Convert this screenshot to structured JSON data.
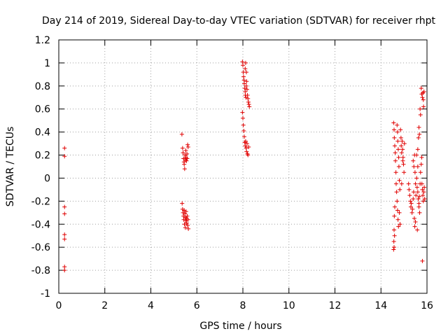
{
  "chart_data": {
    "type": "scatter",
    "title": "Day 214 of 2019, Sidereal Day-to-day VTEC variation (SDTVAR) for receiver rhpt",
    "xlabel": "GPS time / hours",
    "ylabel": "SDTVAR / TECUs",
    "xlim": [
      0,
      16
    ],
    "ylim": [
      -1,
      1.2
    ],
    "x_ticks": [
      0,
      2,
      4,
      6,
      8,
      10,
      12,
      14,
      16
    ],
    "x_tick_labels": [
      "0",
      "2",
      "4",
      "6",
      "8",
      "10",
      "12",
      "14",
      "16"
    ],
    "y_ticks": [
      -1,
      -0.8,
      -0.6,
      -0.4,
      -0.2,
      0,
      0.2,
      0.4,
      0.6,
      0.8,
      1,
      1.2
    ],
    "y_tick_labels": [
      "-1",
      "-0.8",
      "-0.6",
      "-0.4",
      "-0.2",
      "0",
      "0.2",
      "0.4",
      "0.6",
      "0.8",
      "1",
      "1.2"
    ],
    "grid": true,
    "marker": "+",
    "marker_color": "#e00000",
    "series": [
      {
        "name": "SDTVAR",
        "points": [
          [
            0.25,
            0.26
          ],
          [
            0.25,
            0.19
          ],
          [
            0.25,
            -0.25
          ],
          [
            0.25,
            -0.31
          ],
          [
            0.25,
            -0.49
          ],
          [
            0.25,
            -0.53
          ],
          [
            0.25,
            -0.77
          ],
          [
            0.25,
            -0.8
          ],
          [
            5.35,
            0.38
          ],
          [
            5.38,
            0.26
          ],
          [
            5.4,
            0.22
          ],
          [
            5.42,
            0.17
          ],
          [
            5.44,
            0.14
          ],
          [
            5.45,
            0.12
          ],
          [
            5.47,
            0.08
          ],
          [
            5.48,
            0.2
          ],
          [
            5.5,
            0.16
          ],
          [
            5.52,
            0.24
          ],
          [
            5.53,
            0.18
          ],
          [
            5.55,
            0.15
          ],
          [
            5.57,
            0.21
          ],
          [
            5.58,
            0.17
          ],
          [
            5.6,
            0.29
          ],
          [
            5.62,
            0.27
          ],
          [
            5.36,
            -0.22
          ],
          [
            5.38,
            -0.27
          ],
          [
            5.4,
            -0.3
          ],
          [
            5.42,
            -0.33
          ],
          [
            5.43,
            -0.36
          ],
          [
            5.45,
            -0.28
          ],
          [
            5.46,
            -0.4
          ],
          [
            5.48,
            -0.31
          ],
          [
            5.49,
            -0.34
          ],
          [
            5.5,
            -0.43
          ],
          [
            5.52,
            -0.37
          ],
          [
            5.53,
            -0.29
          ],
          [
            5.55,
            -0.35
          ],
          [
            5.56,
            -0.39
          ],
          [
            5.58,
            -0.33
          ],
          [
            5.6,
            -0.41
          ],
          [
            5.62,
            -0.36
          ],
          [
            5.63,
            -0.44
          ],
          [
            7.98,
            1.01
          ],
          [
            8.0,
            0.98
          ],
          [
            8.02,
            0.92
          ],
          [
            8.03,
            0.88
          ],
          [
            8.05,
            0.85
          ],
          [
            8.06,
            0.82
          ],
          [
            8.08,
            0.78
          ],
          [
            8.1,
            0.75
          ],
          [
            8.11,
            0.72
          ],
          [
            8.13,
            0.7
          ],
          [
            8.15,
            0.8
          ],
          [
            8.16,
            0.84
          ],
          [
            8.18,
            0.77
          ],
          [
            8.2,
            0.72
          ],
          [
            8.22,
            0.69
          ],
          [
            8.24,
            0.66
          ],
          [
            8.26,
            0.64
          ],
          [
            8.28,
            0.62
          ],
          [
            8.1,
            0.95
          ],
          [
            8.12,
            1.0
          ],
          [
            8.15,
            0.92
          ],
          [
            7.98,
            0.57
          ],
          [
            8.0,
            0.52
          ],
          [
            8.02,
            0.46
          ],
          [
            8.04,
            0.41
          ],
          [
            8.06,
            0.36
          ],
          [
            8.08,
            0.31
          ],
          [
            8.1,
            0.28
          ],
          [
            8.12,
            0.32
          ],
          [
            8.14,
            0.26
          ],
          [
            8.16,
            0.23
          ],
          [
            8.18,
            0.3
          ],
          [
            8.2,
            0.21
          ],
          [
            8.22,
            0.2
          ],
          [
            8.25,
            0.27
          ],
          [
            14.55,
            0.48
          ],
          [
            14.57,
            0.42
          ],
          [
            14.58,
            0.35
          ],
          [
            14.6,
            0.28
          ],
          [
            14.62,
            0.22
          ],
          [
            14.63,
            0.15
          ],
          [
            14.65,
            0.05
          ],
          [
            14.66,
            -0.05
          ],
          [
            14.68,
            -0.12
          ],
          [
            14.6,
            -0.25
          ],
          [
            14.58,
            -0.33
          ],
          [
            14.57,
            -0.45
          ],
          [
            14.56,
            -0.55
          ],
          [
            14.55,
            -0.62
          ],
          [
            14.57,
            -0.6
          ],
          [
            14.59,
            -0.5
          ],
          [
            14.7,
            0.46
          ],
          [
            14.72,
            0.4
          ],
          [
            14.73,
            0.32
          ],
          [
            14.75,
            0.25
          ],
          [
            14.77,
            0.18
          ],
          [
            14.78,
            0.1
          ],
          [
            14.8,
            -0.02
          ],
          [
            14.82,
            -0.1
          ],
          [
            14.7,
            -0.2
          ],
          [
            14.72,
            -0.28
          ],
          [
            14.74,
            -0.36
          ],
          [
            14.76,
            -0.42
          ],
          [
            14.85,
            0.42
          ],
          [
            14.87,
            0.35
          ],
          [
            14.88,
            0.28
          ],
          [
            14.9,
            0.22
          ],
          [
            14.92,
            0.32
          ],
          [
            14.94,
            0.25
          ],
          [
            14.96,
            0.18
          ],
          [
            14.98,
            0.12
          ],
          [
            15.0,
            0.05
          ],
          [
            14.9,
            -0.05
          ],
          [
            14.95,
            0.15
          ],
          [
            15.02,
            0.3
          ],
          [
            14.8,
            -0.3
          ],
          [
            14.83,
            -0.4
          ],
          [
            15.2,
            -0.05
          ],
          [
            15.22,
            -0.1
          ],
          [
            15.25,
            -0.15
          ],
          [
            15.28,
            -0.2
          ],
          [
            15.3,
            -0.25
          ],
          [
            15.32,
            -0.22
          ],
          [
            15.35,
            -0.3
          ],
          [
            15.37,
            -0.27
          ],
          [
            15.4,
            -0.18
          ],
          [
            15.42,
            -0.12
          ],
          [
            15.45,
            -0.35
          ],
          [
            15.47,
            -0.42
          ],
          [
            15.4,
            0.15
          ],
          [
            15.43,
            0.1
          ],
          [
            15.46,
            0.2
          ],
          [
            15.48,
            0.05
          ],
          [
            15.5,
            -0.05
          ],
          [
            15.52,
            -0.15
          ],
          [
            15.55,
            0.0
          ],
          [
            15.57,
            -0.08
          ],
          [
            15.6,
            -0.12
          ],
          [
            15.62,
            -0.18
          ],
          [
            15.65,
            -0.22
          ],
          [
            15.67,
            -0.16
          ],
          [
            15.7,
            -0.05
          ],
          [
            15.72,
            0.05
          ],
          [
            15.75,
            0.12
          ],
          [
            15.77,
            0.18
          ],
          [
            15.6,
            0.25
          ],
          [
            15.63,
            0.35
          ],
          [
            15.65,
            0.44
          ],
          [
            15.67,
            0.38
          ],
          [
            15.7,
            0.6
          ],
          [
            15.72,
            0.55
          ],
          [
            15.6,
            0.1
          ],
          [
            15.55,
            0.2
          ],
          [
            15.75,
            0.78
          ],
          [
            15.77,
            0.73
          ],
          [
            15.8,
            0.7
          ],
          [
            15.82,
            0.74
          ],
          [
            15.84,
            0.68
          ],
          [
            15.85,
            0.62
          ],
          [
            15.87,
            0.75
          ],
          [
            15.78,
            -0.05
          ],
          [
            15.8,
            -0.1
          ],
          [
            15.82,
            -0.15
          ],
          [
            15.84,
            -0.2
          ],
          [
            15.86,
            -0.12
          ],
          [
            15.88,
            -0.08
          ],
          [
            15.9,
            -0.18
          ],
          [
            15.8,
            -0.72
          ],
          [
            15.65,
            -0.25
          ],
          [
            15.68,
            -0.3
          ],
          [
            15.58,
            -0.45
          ],
          [
            15.5,
            -0.38
          ]
        ]
      }
    ]
  }
}
